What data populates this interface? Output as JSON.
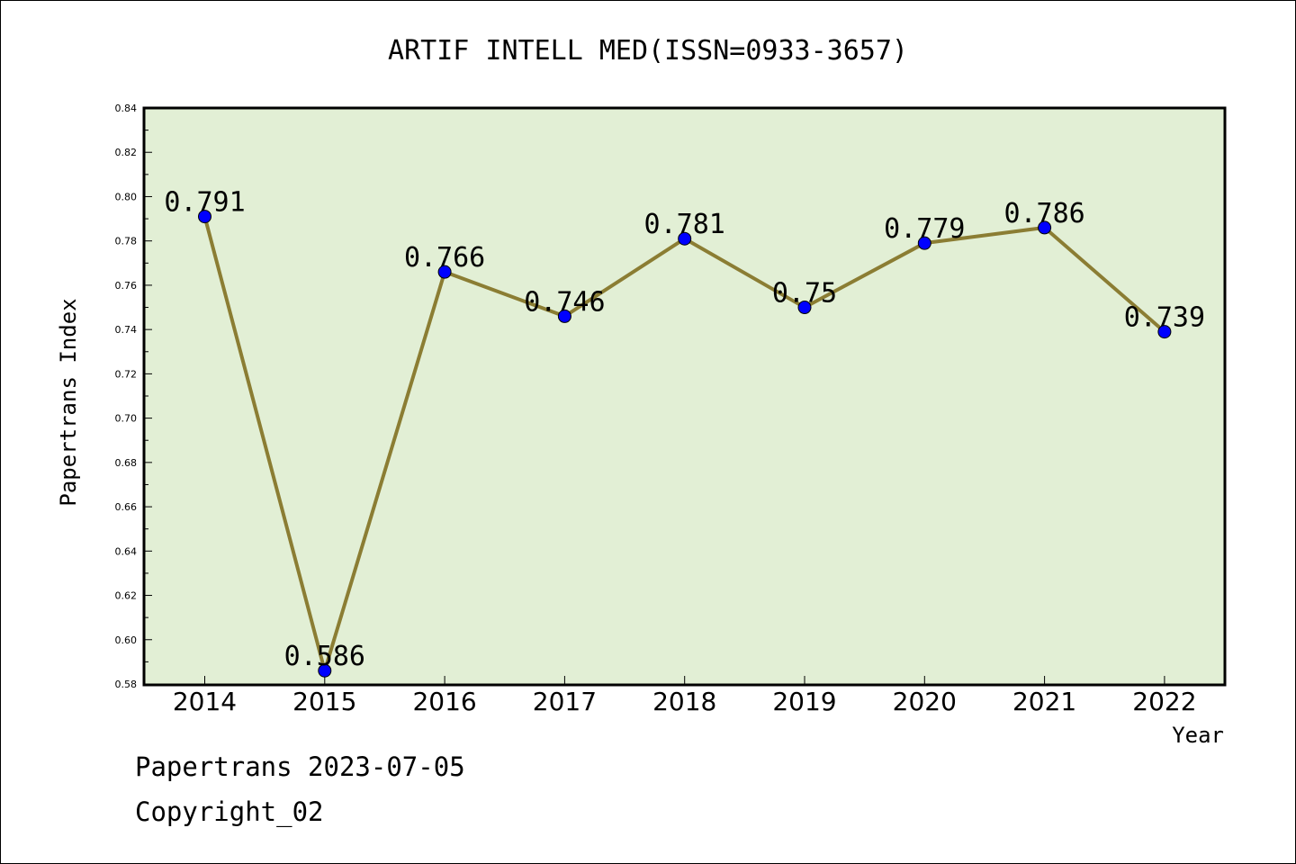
{
  "chart_data": {
    "type": "line",
    "title": "ARTIF INTELL MED(ISSN=0933-3657)",
    "xlabel": "Year",
    "ylabel": "Papertrans Index",
    "categories": [
      "2014",
      "2015",
      "2016",
      "2017",
      "2018",
      "2019",
      "2020",
      "2021",
      "2022"
    ],
    "values": [
      0.791,
      0.586,
      0.766,
      0.746,
      0.781,
      0.75,
      0.779,
      0.786,
      0.739
    ],
    "data_labels": [
      "0.791",
      "0.586",
      "0.766",
      "0.746",
      "0.781",
      "0.75",
      "0.779",
      "0.786",
      "0.739"
    ],
    "ylim": [
      0.58,
      0.84
    ],
    "yticks": [
      "0.58",
      "0.60",
      "0.62",
      "0.64",
      "0.66",
      "0.68",
      "0.70",
      "0.72",
      "0.74",
      "0.76",
      "0.78",
      "0.80",
      "0.82",
      "0.84"
    ],
    "grid": false,
    "colors": {
      "plot_background": "#e2efd5",
      "line": "#8b7d33",
      "marker": "#0000ff"
    }
  },
  "footer": {
    "line1": "Papertrans 2023-07-05",
    "line2": "Copyright_02"
  }
}
